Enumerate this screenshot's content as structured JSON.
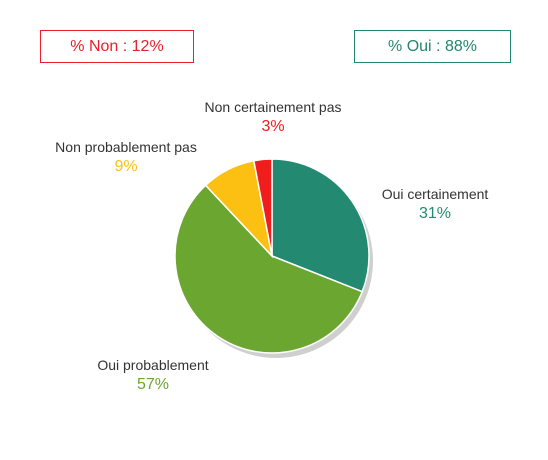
{
  "summary": {
    "non": {
      "label": "% Non : 12%",
      "color": "#e8202a"
    },
    "oui": {
      "label": "% Oui : 88%",
      "color": "#21876e"
    }
  },
  "chart_data": {
    "type": "pie",
    "title": "",
    "slices": [
      {
        "label": "Oui certainement",
        "value": 31,
        "display": "31%",
        "color": "#238a71"
      },
      {
        "label": "Oui probablement",
        "value": 57,
        "display": "57%",
        "color": "#6aa630"
      },
      {
        "label": "Non probablement pas",
        "value": 9,
        "display": "9%",
        "color": "#fbc012"
      },
      {
        "label": "Non certainement pas",
        "value": 3,
        "display": "3%",
        "color": "#f01d1d"
      }
    ]
  }
}
